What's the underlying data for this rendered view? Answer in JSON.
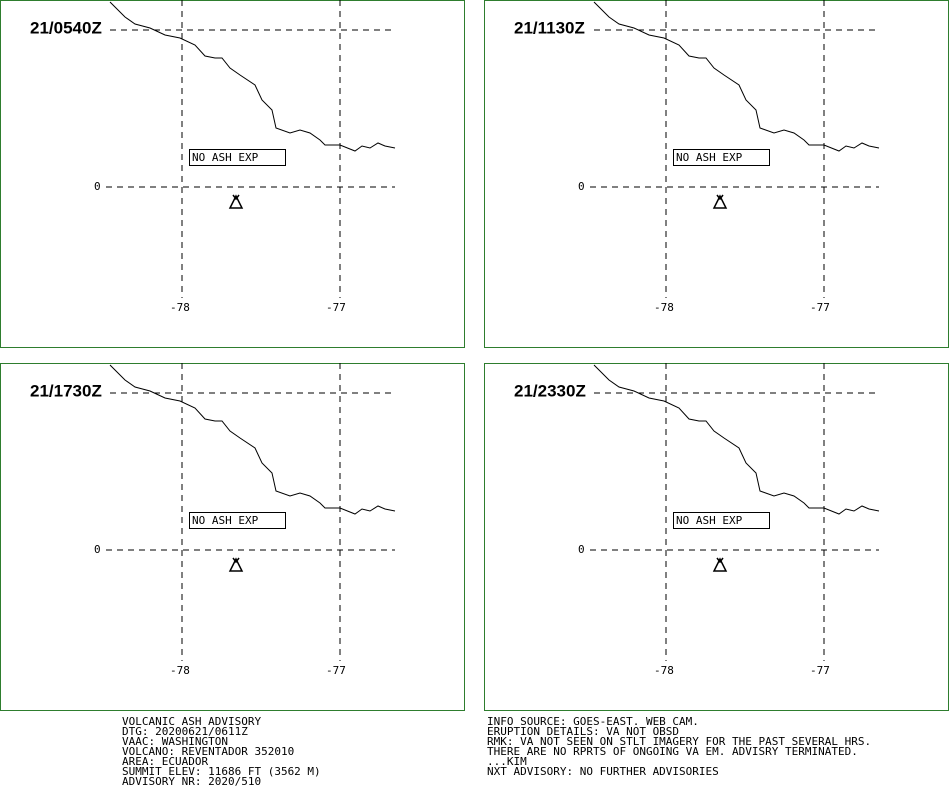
{
  "panels": [
    {
      "time": "21/0540Z",
      "note": "NO ASH EXP",
      "lat_label": "0",
      "lon_labels": [
        "-78",
        "-77"
      ]
    },
    {
      "time": "21/1130Z",
      "note": "NO ASH EXP",
      "lat_label": "0",
      "lon_labels": [
        "-78",
        "-77"
      ]
    },
    {
      "time": "21/1730Z",
      "note": "NO ASH EXP",
      "lat_label": "0",
      "lon_labels": [
        "-78",
        "-77"
      ]
    },
    {
      "time": "21/2330Z",
      "note": "NO ASH EXP",
      "lat_label": "0",
      "lon_labels": [
        "-78",
        "-77"
      ]
    }
  ],
  "advisory_left": [
    "VOLCANIC ASH ADVISORY",
    "DTG: 20200621/0611Z",
    "VAAC: WASHINGTON",
    "VOLCANO: REVENTADOR 352010",
    "AREA: ECUADOR",
    "SUMMIT ELEV: 11686 FT (3562 M)",
    "ADVISORY NR: 2020/510"
  ],
  "advisory_right": [
    "INFO SOURCE: GOES-EAST. WEB CAM.",
    "ERUPTION DETAILS: VA NOT OBSD",
    "RMK: VA NOT SEEN ON STLT IMAGERY FOR THE PAST SEVERAL HRS.",
    "THERE ARE NO RPRTS OF ONGOING VA EM. ADVISRY TERMINATED.",
    "...KIM",
    "NXT ADVISORY: NO FURTHER ADVISORIES"
  ]
}
